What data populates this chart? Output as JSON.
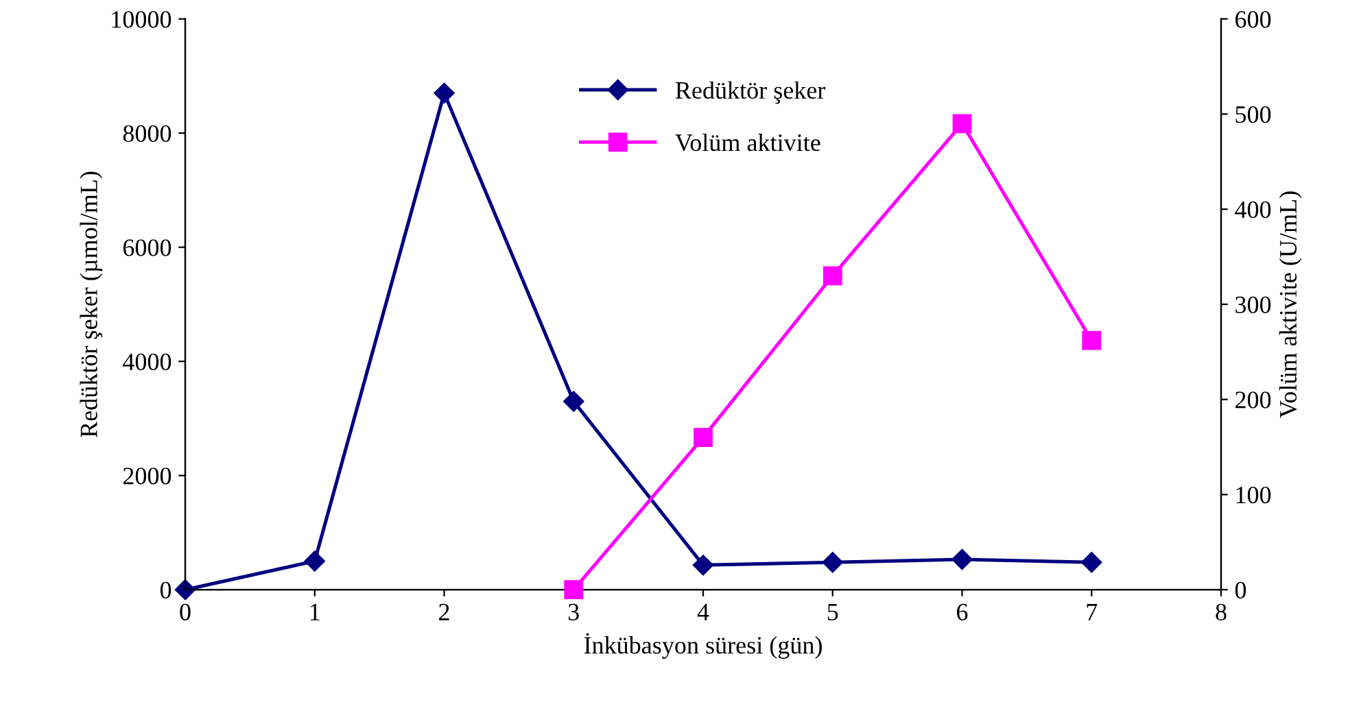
{
  "chart_data": {
    "type": "line",
    "xlabel": "İnkübasyon süresi (gün)",
    "ylabel": "Redüktör şeker (µmol/mL)",
    "y2label": "Volüm aktivite (U/mL)",
    "xlim": [
      0,
      8
    ],
    "xticks": [
      0,
      1,
      2,
      3,
      4,
      5,
      6,
      7,
      8
    ],
    "ylim": [
      0,
      10000
    ],
    "yticks": [
      0,
      2000,
      4000,
      6000,
      8000,
      10000
    ],
    "y2lim": [
      0,
      600
    ],
    "y2ticks": [
      0,
      100,
      200,
      300,
      400,
      500,
      600
    ],
    "grid": false,
    "legend": "top center",
    "series": [
      {
        "name": "Redüktör şeker",
        "color": "#000080",
        "marker": "diamond",
        "x": [
          0,
          1,
          2,
          3,
          4,
          5,
          6,
          7
        ],
        "values": [
          0,
          500,
          8700,
          3300,
          430,
          480,
          530,
          480
        ]
      },
      {
        "name": "Volüm aktivite",
        "color": "#ff00ff",
        "marker": "square",
        "axis": "y2",
        "x": [
          3,
          4,
          5,
          6,
          7
        ],
        "values": [
          0,
          160,
          330,
          490,
          262
        ]
      }
    ]
  }
}
